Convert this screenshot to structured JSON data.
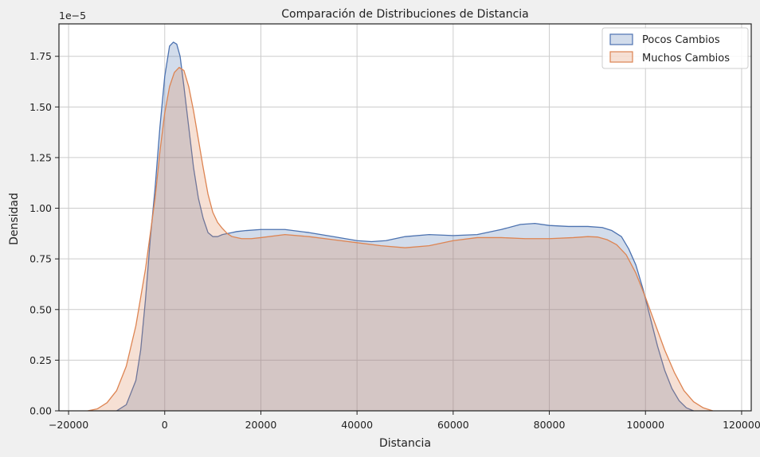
{
  "chart_data": {
    "type": "area",
    "title": "Comparación de Distribuciones de Distancia",
    "xlabel": "Distancia",
    "ylabel": "Densidad",
    "y_offset_label": "1e−5",
    "y_scale": 1e-05,
    "xlim": [
      -22000,
      122000
    ],
    "ylim": [
      0,
      1.91
    ],
    "grid": true,
    "legend_position": "top-right",
    "x_ticks": [
      -20000,
      0,
      20000,
      40000,
      60000,
      80000,
      100000,
      120000
    ],
    "x_tick_labels": [
      "−20000",
      "0",
      "20000",
      "40000",
      "60000",
      "80000",
      "100000",
      "120000"
    ],
    "y_ticks": [
      0,
      0.25,
      0.5,
      0.75,
      1.0,
      1.25,
      1.5,
      1.75
    ],
    "y_tick_labels": [
      "0.00",
      "0.25",
      "0.50",
      "0.75",
      "1.00",
      "1.25",
      "1.50",
      "1.75"
    ],
    "series": [
      {
        "name": "Pocos Cambios",
        "line_color": "#4c72b0",
        "fill_color": "#4c72b0",
        "x": [
          -10000,
          -8000,
          -6000,
          -5000,
          -4000,
          -3000,
          -2000,
          -1000,
          0,
          1000,
          1800,
          2500,
          3200,
          4000,
          5000,
          6000,
          7000,
          8000,
          9000,
          10000,
          11000,
          12000,
          13000,
          14000,
          15000,
          17000,
          20000,
          25000,
          30000,
          35000,
          40000,
          43000,
          46000,
          50000,
          55000,
          60000,
          65000,
          70000,
          74000,
          77000,
          80000,
          84000,
          88000,
          91000,
          93000,
          95000,
          96500,
          98000,
          99500,
          101000,
          102500,
          104000,
          105500,
          107000,
          108500,
          110000
        ],
        "values": [
          0.0,
          0.03,
          0.15,
          0.3,
          0.55,
          0.85,
          1.1,
          1.4,
          1.65,
          1.8,
          1.82,
          1.81,
          1.75,
          1.6,
          1.4,
          1.2,
          1.05,
          0.95,
          0.88,
          0.86,
          0.86,
          0.87,
          0.875,
          0.88,
          0.885,
          0.89,
          0.895,
          0.895,
          0.88,
          0.86,
          0.84,
          0.835,
          0.84,
          0.86,
          0.87,
          0.865,
          0.87,
          0.895,
          0.92,
          0.925,
          0.915,
          0.91,
          0.91,
          0.905,
          0.89,
          0.86,
          0.8,
          0.72,
          0.6,
          0.46,
          0.32,
          0.2,
          0.11,
          0.05,
          0.015,
          0.0
        ]
      },
      {
        "name": "Muchos Cambios",
        "line_color": "#dd8452",
        "fill_color": "#dd8452",
        "x": [
          -16000,
          -14000,
          -12000,
          -10000,
          -8000,
          -6000,
          -4000,
          -2000,
          -1000,
          0,
          1000,
          2000,
          3000,
          4000,
          5000,
          6000,
          7000,
          8000,
          9000,
          10000,
          11000,
          12000,
          13000,
          14000,
          16000,
          18000,
          20000,
          25000,
          30000,
          35000,
          40000,
          45000,
          50000,
          55000,
          60000,
          65000,
          70000,
          75000,
          80000,
          85000,
          88000,
          90000,
          92000,
          94000,
          96000,
          98000,
          100000,
          102000,
          104000,
          106000,
          108000,
          110000,
          112000,
          114000
        ],
        "values": [
          0.0,
          0.01,
          0.04,
          0.1,
          0.22,
          0.42,
          0.7,
          1.05,
          1.28,
          1.47,
          1.6,
          1.67,
          1.695,
          1.68,
          1.6,
          1.48,
          1.34,
          1.2,
          1.07,
          0.98,
          0.93,
          0.9,
          0.875,
          0.86,
          0.85,
          0.85,
          0.855,
          0.87,
          0.86,
          0.845,
          0.83,
          0.815,
          0.805,
          0.815,
          0.84,
          0.855,
          0.855,
          0.85,
          0.85,
          0.855,
          0.86,
          0.858,
          0.845,
          0.82,
          0.77,
          0.68,
          0.56,
          0.43,
          0.3,
          0.19,
          0.1,
          0.045,
          0.015,
          0.0
        ]
      }
    ]
  }
}
